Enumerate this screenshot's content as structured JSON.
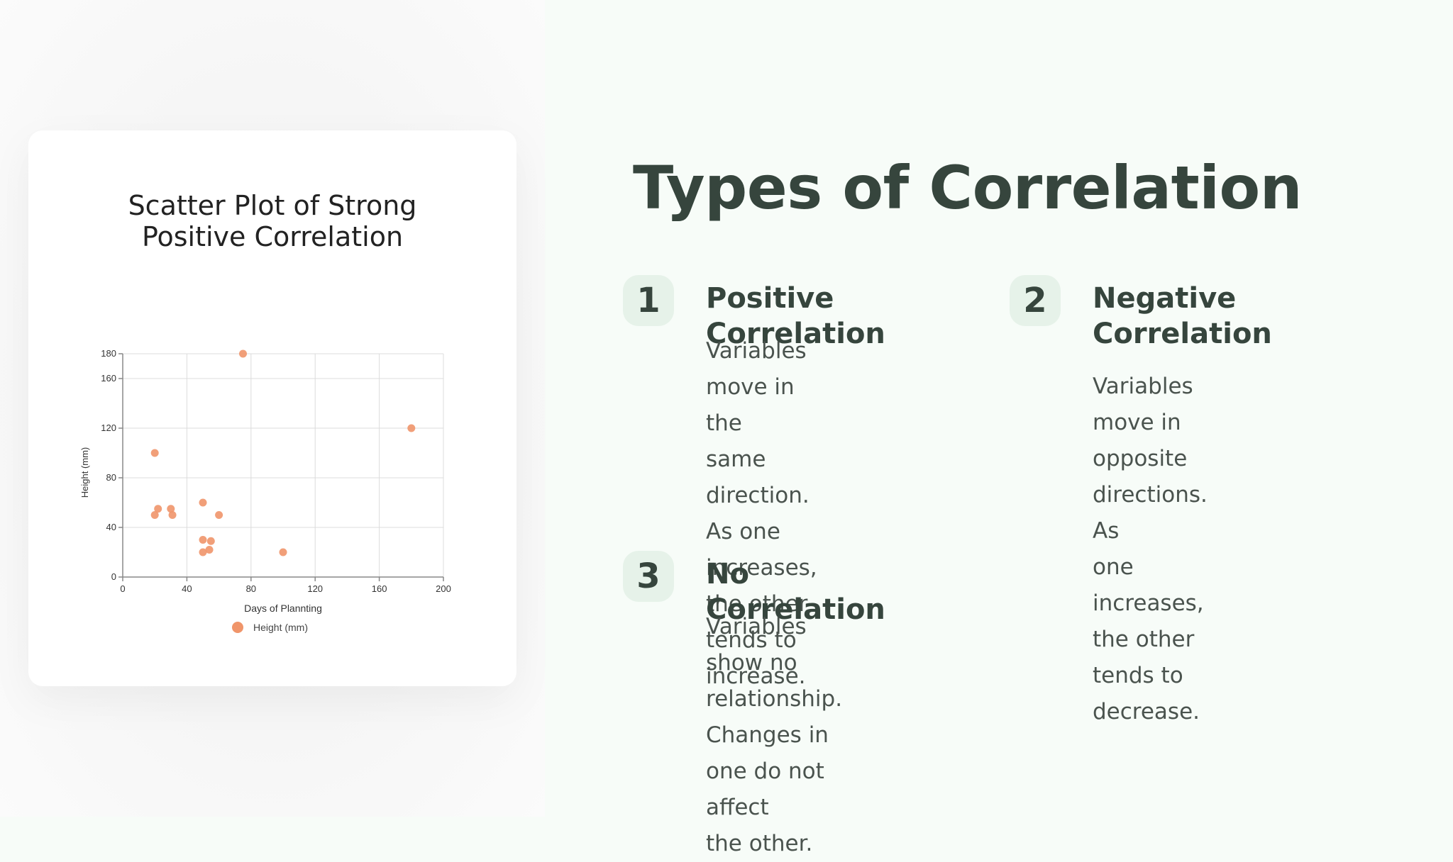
{
  "chart_data": {
    "type": "scatter",
    "title": [
      "Scatter Plot of Strong",
      "Positive Correlation"
    ],
    "xlabel": "Days of Plannting",
    "ylabel": "Height (mm)",
    "xlim": [
      0,
      200
    ],
    "ylim": [
      0,
      180
    ],
    "x_ticks": [
      0,
      40,
      80,
      120,
      160,
      200
    ],
    "y_ticks": [
      0,
      40,
      80,
      120,
      160,
      180
    ],
    "grid": true,
    "legend": "bottom",
    "series": [
      {
        "name": "Height (mm)",
        "color": "#f0956a",
        "points": [
          [
            75,
            180
          ],
          [
            180,
            120
          ],
          [
            20,
            100
          ],
          [
            50,
            60
          ],
          [
            22,
            55
          ],
          [
            30,
            55
          ],
          [
            20,
            50
          ],
          [
            31,
            50
          ],
          [
            60,
            50
          ],
          [
            50,
            30
          ],
          [
            55,
            29
          ],
          [
            54,
            22
          ],
          [
            50,
            20
          ],
          [
            100,
            20
          ]
        ]
      }
    ]
  },
  "slide": {
    "title": "Types of Correlation",
    "items": [
      {
        "number": "1",
        "heading": "Positive Correlation",
        "body": [
          "Variables move in the",
          "same direction. As one",
          "increases, the other",
          "tends to increase."
        ]
      },
      {
        "number": "2",
        "heading": [
          "Negative",
          "Correlation"
        ],
        "body": [
          "Variables move in",
          "opposite directions. As",
          "one increases, the other",
          "tends to decrease."
        ]
      },
      {
        "number": "3",
        "heading": "No Correlation",
        "body": [
          "Variables show no relationship. Changes in one do not affect",
          "the other."
        ]
      }
    ]
  }
}
